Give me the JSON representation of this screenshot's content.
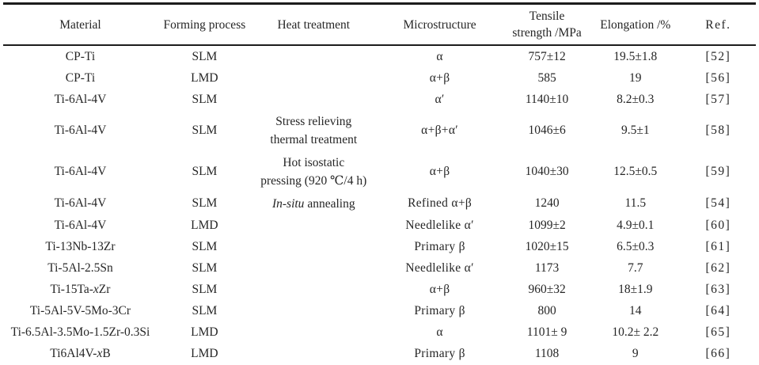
{
  "table": {
    "colors": {
      "text": "#262626",
      "rule": "#1c1c1c",
      "background": "#ffffff"
    },
    "columns": [
      {
        "id": "material",
        "label": "Material"
      },
      {
        "id": "process",
        "label": "Forming process"
      },
      {
        "id": "heat",
        "label": "Heat treatment"
      },
      {
        "id": "micro",
        "label": "Microstructure"
      },
      {
        "id": "tensile",
        "label": "Tensile\nstrength /MPa"
      },
      {
        "id": "elong",
        "label": "Elongation /%"
      },
      {
        "id": "ref",
        "label": "Ref."
      }
    ],
    "rows": [
      {
        "material": "CP-Ti",
        "process": "SLM",
        "heat": [],
        "micro": "α",
        "tensile": "757±12",
        "elong": "19.5±1.8",
        "ref": "[52]"
      },
      {
        "material": "CP-Ti",
        "process": "LMD",
        "heat": [],
        "micro": "α+β",
        "tensile": "585",
        "elong": "19",
        "ref": "[56]"
      },
      {
        "material": "Ti-6Al-4V",
        "process": "SLM",
        "heat": [],
        "micro": "α′",
        "tensile": "1140±10",
        "elong": "8.2±0.3",
        "ref": "[57]"
      },
      {
        "material": "Ti-6Al-4V",
        "process": "SLM",
        "heat": [
          "Stress relieving",
          "thermal treatment"
        ],
        "micro": "α+β+α′",
        "tensile": "1046±6",
        "elong": "9.5±1",
        "ref": "[58]"
      },
      {
        "material": "Ti-6Al-4V",
        "process": "SLM",
        "heat": [
          "Hot isostatic",
          "pressing (920 ℃/4 h)"
        ],
        "micro": "α+β",
        "tensile": "1040±30",
        "elong": "12.5±0.5",
        "ref": "[59]"
      },
      {
        "material": "Ti-6Al-4V",
        "process": "SLM",
        "heat": [
          "*In-situ* annealing"
        ],
        "micro": "Refined α+β",
        "tensile": "1240",
        "elong": "11.5",
        "ref": "[54]"
      },
      {
        "material": "Ti-6Al-4V",
        "process": "LMD",
        "heat": [],
        "micro": "Needlelike α′",
        "tensile": "1099±2",
        "elong": "4.9±0.1",
        "ref": "[60]"
      },
      {
        "material": "Ti-13Nb-13Zr",
        "process": "SLM",
        "heat": [],
        "micro": "Primary β",
        "tensile": "1020±15",
        "elong": "6.5±0.3",
        "ref": "[61]"
      },
      {
        "material": "Ti-5Al-2.5Sn",
        "process": "SLM",
        "heat": [],
        "micro": "Needlelike α′",
        "tensile": "1173",
        "elong": "7.7",
        "ref": "[62]"
      },
      {
        "material": "Ti-15Ta-*x*Zr",
        "process": "SLM",
        "heat": [],
        "micro": "α+β",
        "tensile": "960±32",
        "elong": "18±1.9",
        "ref": "[63]"
      },
      {
        "material": "Ti-5Al-5V-5Mo-3Cr",
        "process": "SLM",
        "heat": [],
        "micro": "Primary β",
        "tensile": "800",
        "elong": "14",
        "ref": "[64]"
      },
      {
        "material": "Ti-6.5Al-3.5Mo-1.5Zr-0.3Si",
        "process": "LMD",
        "heat": [],
        "micro": "α",
        "tensile": "1101± 9",
        "elong": "10.2± 2.2",
        "ref": "[65]"
      },
      {
        "material": "Ti6Al4V-*x*B",
        "process": "LMD",
        "heat": [],
        "micro": "Primary β",
        "tensile": "1108",
        "elong": "9",
        "ref": "[66]"
      }
    ]
  }
}
